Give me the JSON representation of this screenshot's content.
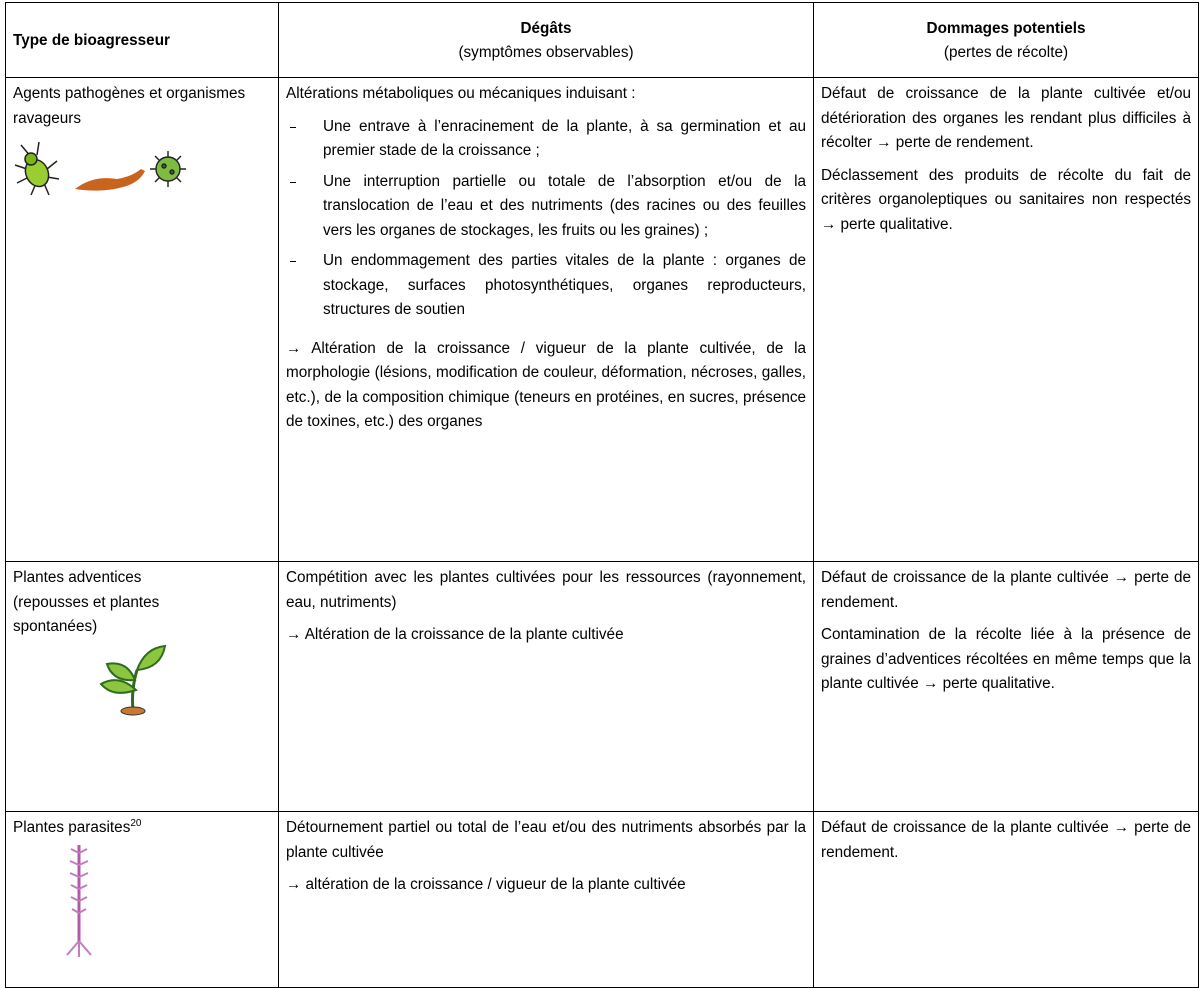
{
  "table": {
    "header": [
      {
        "title": "Type de bioagresseur"
      },
      {
        "title": "Dégâts",
        "subtitle": "(symptômes observables)"
      },
      {
        "title": "Dommages potentiels",
        "subtitle": "(pertes de récolte)"
      }
    ],
    "rows": [
      {
        "type": "Agents pathogènes et organismes ravageurs",
        "damage": {
          "intro": "Altérations métaboliques ou mécaniques induisant :",
          "items": [
            "Une entrave à l’enracinement de la plante, à sa germination et au premier stade de la croissance ;",
            "Une interruption partielle ou totale de l’absorption et/ou de la translocation de l’eau et des nutriments (des racines ou des feuilles vers les organes de stockages, les fruits ou les graines) ;",
            "Un endommagement des parties vitales de la plante : organes de stockage, surfaces photosynthétiques, organes reproducteurs, structures de soutien"
          ],
          "conclusion": "→ Altération de la croissance / vigueur de la plante cultivée, de la morphologie (lésions, modification de couleur, déformation, nécroses, galles, etc.), de la composition chimique (teneurs en protéines, en sucres, présence de toxines, etc.) des organes"
        },
        "losses": [
          "Défaut de croissance de la plante cultivée et/ou détérioration des organes les rendant plus difficiles à récolter → perte de rendement.",
          "Déclassement des produits de récolte du fait de critères organoleptiques ou sanitaires non respectés → perte qualitative."
        ]
      },
      {
        "type": "Plantes adventices (repousses et plantes spontanées)",
        "damage": {
          "intro": "Compétition avec les plantes cultivées pour les ressources (rayonnement, eau, nutriments)",
          "conclusion": "→ Altération de la croissance de la plante cultivée"
        },
        "losses": [
          "Défaut de croissance de la plante cultivée → perte de rendement.",
          "Contamination de la récolte liée à la présence de graines d’adventices récoltées en même temps que la plante cultivée → perte qualitative."
        ]
      },
      {
        "type": "Plantes parasites",
        "type_note": "20",
        "damage": {
          "intro": "Détournement partiel ou total de l’eau et/ou des nutriments absorbés par la plante cultivée",
          "conclusion": "→ altération de la croissance / vigueur de la plante cultivée"
        },
        "losses": [
          "Défaut de croissance de la plante cultivée → perte de rendement."
        ]
      }
    ]
  }
}
